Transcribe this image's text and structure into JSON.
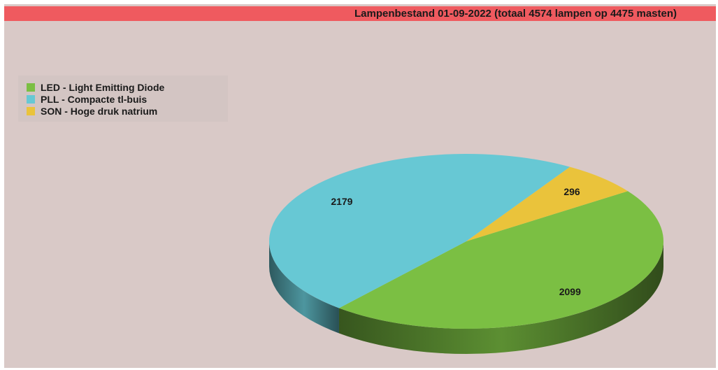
{
  "chart_data": {
    "type": "pie",
    "title": "Lampenbestand 01-09-2022 (totaal 4574 lampen op 4475 masten)",
    "legend_position": "top-left",
    "slices": [
      {
        "name": "LED - Light Emitting Diode",
        "value": 2099,
        "color": "#7bbf43"
      },
      {
        "name": "PLL - Compacte tl-buis",
        "value": 2179,
        "color": "#67c8d4"
      },
      {
        "name": "SON - Hoge druk natrium",
        "value": 296,
        "color": "#eac33b"
      }
    ]
  }
}
